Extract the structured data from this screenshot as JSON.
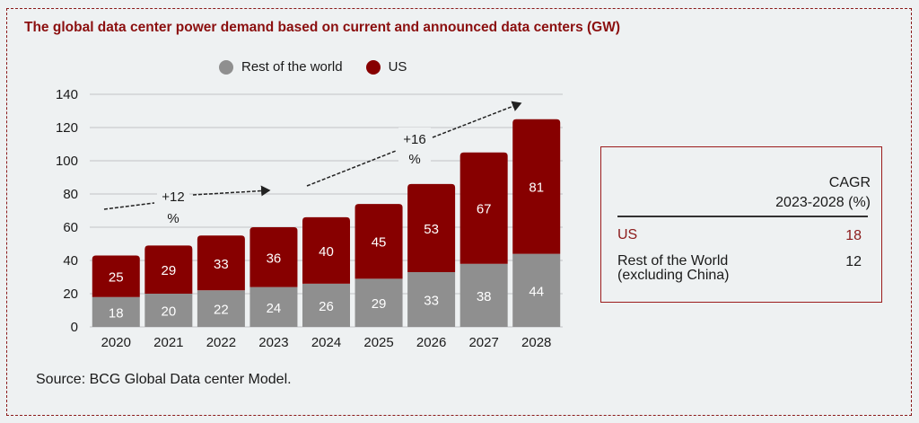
{
  "title": "The global data center power demand based on current and announced data centers (GW)",
  "legend": [
    {
      "label": "Rest of the world",
      "color": "#8f8f8f"
    },
    {
      "label": "US",
      "color": "#870000"
    }
  ],
  "source": "Source: BCG Global Data center Model.",
  "cagr_table": {
    "header_line1": "CAGR",
    "header_line2": "2023-2028 (%)",
    "rows": [
      {
        "label": "US",
        "value": "18"
      },
      {
        "label_line1": "Rest of the World",
        "label_line2": "(excluding China)",
        "value": "12"
      }
    ]
  },
  "chart_data": {
    "type": "bar",
    "stacked": true,
    "title": "The global data center power demand based on current and announced data centers (GW)",
    "xlabel": "",
    "ylabel": "",
    "ylim": [
      0,
      140
    ],
    "yticks": [
      0,
      20,
      40,
      60,
      80,
      100,
      120,
      140
    ],
    "grid": true,
    "legend_position": "top-center",
    "categories": [
      "2020",
      "2021",
      "2022",
      "2023",
      "2024",
      "2025",
      "2026",
      "2027",
      "2028"
    ],
    "series": [
      {
        "name": "Rest of the world",
        "color": "#8f8f8f",
        "values": [
          18,
          20,
          22,
          24,
          26,
          29,
          33,
          38,
          44
        ]
      },
      {
        "name": "US",
        "color": "#870000",
        "values": [
          25,
          29,
          33,
          36,
          40,
          45,
          53,
          67,
          81
        ]
      }
    ],
    "annotations": [
      {
        "text_line1": "+12",
        "text_line2": "%",
        "from": "2020",
        "to": "2023",
        "meaning": "CAGR 2020-2023"
      },
      {
        "text_line1": "+16",
        "text_line2": "%",
        "from": "2024",
        "to": "2028",
        "meaning": "CAGR 2023-2028"
      }
    ]
  }
}
